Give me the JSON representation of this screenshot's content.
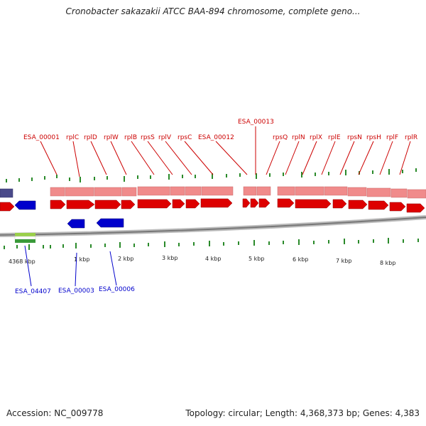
{
  "title": "Cronobacter sakazakii ATCC BAA-894 chromosome, complete geno...",
  "footer": {
    "accession": "Accession: NC_009778",
    "summary": "Topology: circular; Length: 4,368,373 bp; Genes: 4,383"
  },
  "colors": {
    "forward": "#dd0000",
    "forward_band": "#f08b8b",
    "reverse": "#0000cc",
    "ticks": "#2a8a2a",
    "backbone": "#888888"
  },
  "upper_labels": [
    "ESA_00001",
    "rplC",
    "rplD",
    "rplW",
    "rplB",
    "rpsS",
    "rplV",
    "rpsC",
    "ESA_00012",
    "ESA_00013",
    "rpsQ",
    "rplN",
    "rplX",
    "rplE",
    "rpsN",
    "rpsH",
    "rplF",
    "rplR"
  ],
  "lower_labels": [
    "ESA_04407",
    "ESA_00003",
    "ESA_00006"
  ],
  "scale_labels": [
    "4368 kbp",
    "1 kbp",
    "2 kbp",
    "3 kbp",
    "4 kbp",
    "5 kbp",
    "6 kbp",
    "7 kbp",
    "8 kbp"
  ]
}
